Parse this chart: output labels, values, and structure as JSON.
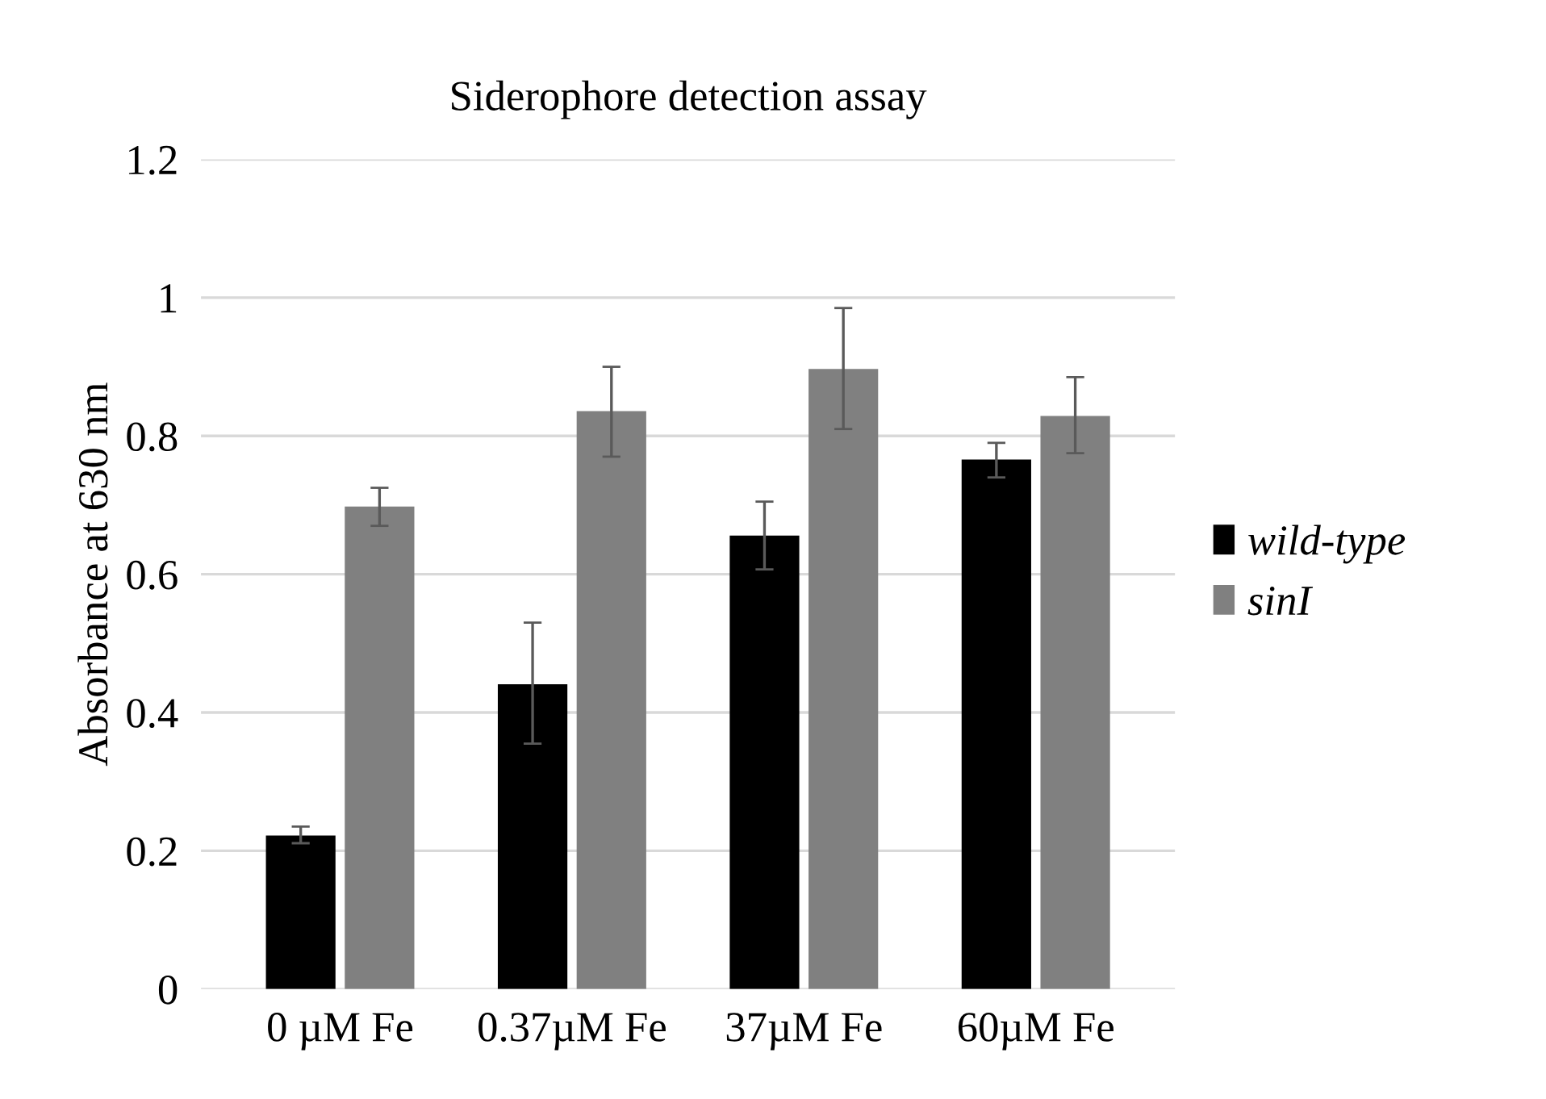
{
  "chart_data": {
    "type": "bar",
    "title": "Siderophore detection assay",
    "ylabel": "Absorbance at 630 nm",
    "categories": [
      "0 µM Fe",
      "0.37µM Fe",
      "37µM Fe",
      "60µM Fe"
    ],
    "series": [
      {
        "name": "wild-type",
        "color": "#000000",
        "values": [
          0.222,
          0.441,
          0.656,
          0.766
        ],
        "errors": [
          [
            0.211,
            0.235
          ],
          [
            0.355,
            0.53
          ],
          [
            0.607,
            0.705
          ],
          [
            0.74,
            0.79
          ]
        ]
      },
      {
        "name": "sinI",
        "color": "#808080",
        "values": [
          0.698,
          0.836,
          0.897,
          0.829
        ],
        "errors": [
          [
            0.67,
            0.725
          ],
          [
            0.77,
            0.9
          ],
          [
            0.81,
            0.985
          ],
          [
            0.775,
            0.885
          ]
        ]
      }
    ],
    "ylim": [
      0,
      1.2
    ],
    "yticks": [
      0,
      0.2,
      0.4,
      0.6,
      0.8,
      1,
      1.2
    ],
    "grid": "y",
    "legend": "right"
  }
}
